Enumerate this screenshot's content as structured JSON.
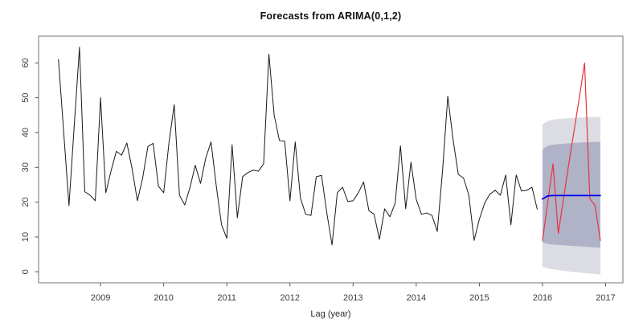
{
  "chart_data": {
    "type": "line",
    "title": "Forecasts from ARIMA(0,1,2)",
    "xlabel": "Lag (year)",
    "ylabel": "",
    "x_ticks": [
      2009,
      2010,
      2011,
      2012,
      2013,
      2014,
      2015,
      2016,
      2017
    ],
    "y_ticks": [
      0,
      10,
      20,
      30,
      40,
      50,
      60
    ],
    "xlim": [
      2008.02,
      2017.27
    ],
    "ylim": [
      -3.2,
      67.7
    ],
    "grid": "off",
    "legend": "none",
    "colors": {
      "observed": "#1a1a1a",
      "forecast_mean": "#0000ee",
      "actuals": "#e8333e",
      "interval_80": "#b0b2c8",
      "interval_95": "#dcdde4",
      "box": "#8a8a8a",
      "ticks": "#5a5a5a",
      "text": "#3c3c3c"
    },
    "observed": {
      "name": "observed series",
      "start": 2008.3333,
      "step": 0.083333,
      "values": [
        61,
        40,
        19,
        42,
        64.5,
        23,
        22,
        20.4,
        50,
        22.7,
        29,
        34.6,
        33.5,
        37,
        29.6,
        20.4,
        26.9,
        36,
        36.9,
        24.6,
        22.7,
        37,
        48,
        22,
        19.2,
        24.2,
        30.6,
        25.4,
        32.7,
        37.3,
        24.6,
        13.5,
        9.6,
        36.5,
        15.5,
        27.3,
        28.5,
        29.2,
        28.9,
        31,
        62.5,
        45,
        37.7,
        37.5,
        20.4,
        37.3,
        21.1,
        16.5,
        16.2,
        27.3,
        27.7,
        17,
        7.7,
        22.7,
        24.3,
        20.2,
        20.4,
        22.7,
        25.8,
        17.6,
        16.5,
        9.3,
        18.1,
        15.8,
        19.7,
        36.2,
        18.1,
        31.5,
        20.8,
        16.5,
        16.9,
        16.2,
        11.6,
        28.9,
        50.4,
        38,
        28,
        26.9,
        22,
        9,
        15.1,
        19.7,
        22.3,
        23.4,
        22,
        27.8,
        13.5,
        27.8,
        23.2,
        23.4,
        24.3,
        18
      ]
    },
    "forecast": {
      "name": "forecast mean",
      "start": 2016.0,
      "step": 0.083333,
      "values": [
        20.9,
        21.8,
        21.9,
        21.9,
        21.9,
        21.9,
        21.9,
        21.9,
        21.9,
        21.9,
        21.9,
        21.9
      ]
    },
    "actuals": {
      "name": "observed 2016 (red)",
      "start": 2016.0,
      "step": 0.083333,
      "values": [
        9,
        20,
        31,
        11,
        21,
        31,
        40.5,
        50,
        60,
        21,
        19,
        9
      ]
    },
    "interval_80": {
      "level": "80%",
      "upper": [
        35.2,
        36.2,
        36.5,
        36.7,
        36.8,
        36.9,
        37.0,
        37.1,
        37.2,
        37.2,
        37.3,
        37.3
      ],
      "lower": [
        8.4,
        8.0,
        7.8,
        7.7,
        7.6,
        7.5,
        7.4,
        7.3,
        7.2,
        7.1,
        7.0,
        6.9
      ]
    },
    "interval_95": {
      "level": "95%",
      "upper": [
        42.4,
        43.3,
        43.7,
        43.9,
        44.0,
        44.1,
        44.2,
        44.3,
        44.4,
        44.4,
        44.5,
        44.5
      ],
      "lower": [
        1.4,
        1.0,
        0.7,
        0.5,
        0.3,
        0.1,
        -0.1,
        -0.2,
        -0.4,
        -0.5,
        -0.6,
        -0.8
      ]
    }
  }
}
